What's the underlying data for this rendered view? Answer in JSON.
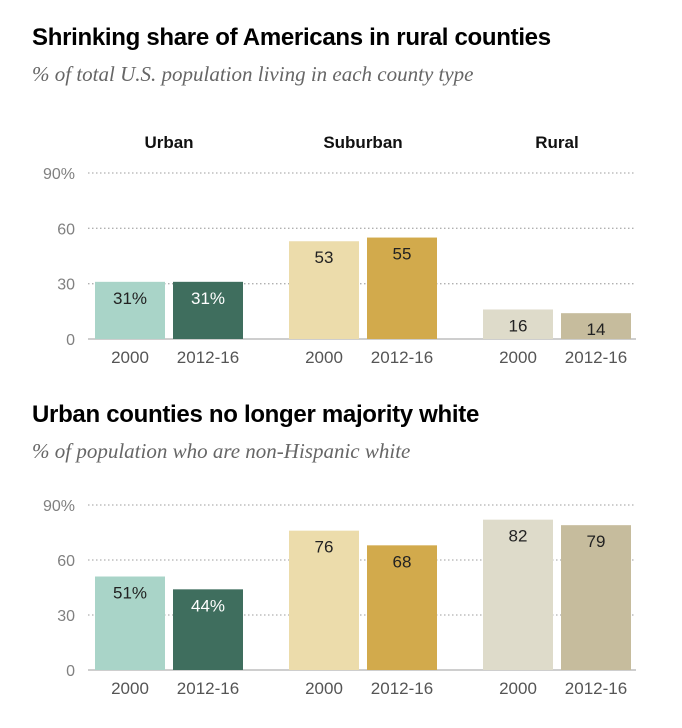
{
  "chart_data": [
    {
      "type": "bar",
      "title": "Shrinking share of Americans in rural counties",
      "subtitle": "% of total U.S. population living in each county type",
      "groups": [
        "Urban",
        "Suburban",
        "Rural"
      ],
      "categories": [
        "2000",
        "2012-16"
      ],
      "series": [
        {
          "group": "Urban",
          "values": [
            31,
            31
          ],
          "labels": [
            "31%",
            "31%"
          ]
        },
        {
          "group": "Suburban",
          "values": [
            53,
            55
          ],
          "labels": [
            "53",
            "55"
          ]
        },
        {
          "group": "Rural",
          "values": [
            16,
            14
          ],
          "labels": [
            "16",
            "14"
          ]
        }
      ],
      "yticks": [
        "0",
        "30",
        "60",
        "90%"
      ],
      "ylim": [
        0,
        90
      ],
      "show_group_labels": true,
      "xlabel": "",
      "ylabel": ""
    },
    {
      "type": "bar",
      "title": "Urban counties no longer majority white",
      "subtitle": "% of population who are non-Hispanic white",
      "groups": [
        "Urban",
        "Suburban",
        "Rural"
      ],
      "categories": [
        "2000",
        "2012-16"
      ],
      "series": [
        {
          "group": "Urban",
          "values": [
            51,
            44
          ],
          "labels": [
            "51%",
            "44%"
          ]
        },
        {
          "group": "Suburban",
          "values": [
            76,
            68
          ],
          "labels": [
            "76",
            "68"
          ]
        },
        {
          "group": "Rural",
          "values": [
            82,
            79
          ],
          "labels": [
            "82",
            "79"
          ]
        }
      ],
      "yticks": [
        "0",
        "30",
        "60",
        "90%"
      ],
      "ylim": [
        0,
        90
      ],
      "show_group_labels": false,
      "xlabel": "",
      "ylabel": ""
    }
  ],
  "colors": {
    "urban_2000": "#a9d4c8",
    "urban_2012": "#3f6e5e",
    "suburban_2000": "#ecdcab",
    "suburban_2012": "#d2aa4c",
    "rural_2000": "#dedbca",
    "rural_2012": "#c6bc9d",
    "label_dark": "#222222",
    "label_light": "#ffffff"
  }
}
